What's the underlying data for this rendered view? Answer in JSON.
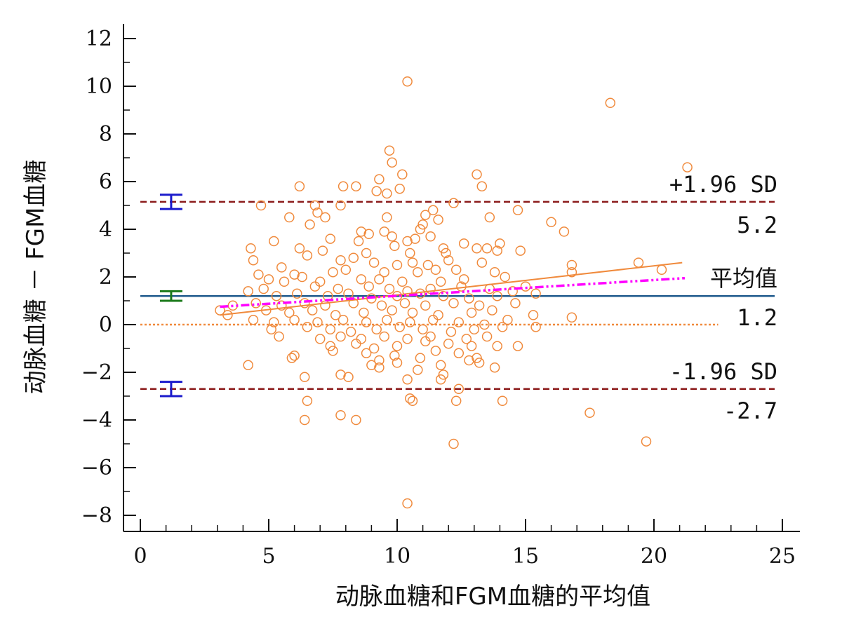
{
  "chart_data": {
    "type": "scatter",
    "title": "",
    "xlabel": "动脉血糖和FGM血糖的平均值",
    "ylabel": "动脉血糖 － FGM血糖",
    "xlim": [
      0,
      25
    ],
    "ylim": [
      -8,
      12
    ],
    "xticks": [
      0,
      5,
      10,
      15,
      20,
      25
    ],
    "yticks": [
      -8,
      -6,
      -4,
      -2,
      0,
      2,
      4,
      6,
      8,
      10,
      12
    ],
    "grid": false,
    "legend": "none",
    "colors": {
      "points": "#f08a3c",
      "mean_line": "#1f5a8c",
      "limit_lines": "#8b1a1a",
      "zero_line": "#f08a3c",
      "regression": "#f08a3c",
      "loess": "#ff00ff",
      "mean_ci": "#1a7a1a",
      "limit_ci": "#1a1acc"
    },
    "reference_lines": {
      "mean": {
        "value": 1.2,
        "name": "平均值",
        "label": "1.2"
      },
      "upper": {
        "value": 5.15,
        "name": "+1.96 SD",
        "label": "5.2"
      },
      "lower": {
        "value": -2.7,
        "name": "-1.96 SD",
        "label": "-2.7"
      },
      "zero": {
        "value": 0,
        "x_range": [
          0,
          22.5
        ]
      }
    },
    "confidence_intervals": {
      "x": 1.2,
      "mean": [
        1.0,
        1.4
      ],
      "upper": [
        4.85,
        5.45
      ],
      "lower": [
        -3.0,
        -2.4
      ]
    },
    "regression_line": {
      "x": [
        3.1,
        21.1
      ],
      "y": [
        0.4,
        2.6
      ]
    },
    "loess_line": {
      "x": [
        3.1,
        21.2
      ],
      "y": [
        0.75,
        1.95
      ]
    },
    "points": [
      [
        10.4,
        10.2
      ],
      [
        18.3,
        9.3
      ],
      [
        9.7,
        7.3
      ],
      [
        9.8,
        6.8
      ],
      [
        21.3,
        6.6
      ],
      [
        10.2,
        6.3
      ],
      [
        13.1,
        6.3
      ],
      [
        9.3,
        6.1
      ],
      [
        13.3,
        5.8
      ],
      [
        6.2,
        5.8
      ],
      [
        7.9,
        5.8
      ],
      [
        8.4,
        5.8
      ],
      [
        10.1,
        5.7
      ],
      [
        9.2,
        5.6
      ],
      [
        9.6,
        5.5
      ],
      [
        12.2,
        5.1
      ],
      [
        4.7,
        5.0
      ],
      [
        6.8,
        5.0
      ],
      [
        7.8,
        5.0
      ],
      [
        14.7,
        4.8
      ],
      [
        11.4,
        4.8
      ],
      [
        6.9,
        4.7
      ],
      [
        11.1,
        4.6
      ],
      [
        7.2,
        4.5
      ],
      [
        5.8,
        4.5
      ],
      [
        9.6,
        4.5
      ],
      [
        13.6,
        4.5
      ],
      [
        11.6,
        4.4
      ],
      [
        16.0,
        4.3
      ],
      [
        6.6,
        4.2
      ],
      [
        11.0,
        4.2
      ],
      [
        10.9,
        4.0
      ],
      [
        9.5,
        3.9
      ],
      [
        16.5,
        3.9
      ],
      [
        8.6,
        3.9
      ],
      [
        9.8,
        3.7
      ],
      [
        8.9,
        3.8
      ],
      [
        11.3,
        3.7
      ],
      [
        10.7,
        3.6
      ],
      [
        8.5,
        3.5
      ],
      [
        5.2,
        3.5
      ],
      [
        7.4,
        3.6
      ],
      [
        10.4,
        3.5
      ],
      [
        12.6,
        3.4
      ],
      [
        9.9,
        3.3
      ],
      [
        13.1,
        3.2
      ],
      [
        13.5,
        3.2
      ],
      [
        14.0,
        3.4
      ],
      [
        11.8,
        3.2
      ],
      [
        4.3,
        3.2
      ],
      [
        6.2,
        3.2
      ],
      [
        7.1,
        3.1
      ],
      [
        8.8,
        3.0
      ],
      [
        10.5,
        3.0
      ],
      [
        11.9,
        3.0
      ],
      [
        13.9,
        3.1
      ],
      [
        14.8,
        3.1
      ],
      [
        4.4,
        2.7
      ],
      [
        6.5,
        2.9
      ],
      [
        7.8,
        2.7
      ],
      [
        8.3,
        2.8
      ],
      [
        9.1,
        2.6
      ],
      [
        10.0,
        2.5
      ],
      [
        10.6,
        2.6
      ],
      [
        11.2,
        2.5
      ],
      [
        12.0,
        2.7
      ],
      [
        13.3,
        2.6
      ],
      [
        16.8,
        2.5
      ],
      [
        19.4,
        2.6
      ],
      [
        5.5,
        2.4
      ],
      [
        6.0,
        2.1
      ],
      [
        7.5,
        2.2
      ],
      [
        8.0,
        2.3
      ],
      [
        9.5,
        2.2
      ],
      [
        10.8,
        2.2
      ],
      [
        11.5,
        2.3
      ],
      [
        12.3,
        2.3
      ],
      [
        13.8,
        2.2
      ],
      [
        16.8,
        2.2
      ],
      [
        20.3,
        2.3
      ],
      [
        4.6,
        2.1
      ],
      [
        5.0,
        1.9
      ],
      [
        6.3,
        2.0
      ],
      [
        7.0,
        1.8
      ],
      [
        8.6,
        1.9
      ],
      [
        9.3,
        1.9
      ],
      [
        10.2,
        1.8
      ],
      [
        11.7,
        1.8
      ],
      [
        12.6,
        1.9
      ],
      [
        14.2,
        2.0
      ],
      [
        15.0,
        1.6
      ],
      [
        4.8,
        1.5
      ],
      [
        5.6,
        1.8
      ],
      [
        6.8,
        1.6
      ],
      [
        7.7,
        1.5
      ],
      [
        8.9,
        1.6
      ],
      [
        9.7,
        1.5
      ],
      [
        10.4,
        1.4
      ],
      [
        11.3,
        1.5
      ],
      [
        12.5,
        1.6
      ],
      [
        13.6,
        1.5
      ],
      [
        14.5,
        1.4
      ],
      [
        4.2,
        1.4
      ],
      [
        5.3,
        1.2
      ],
      [
        6.1,
        1.3
      ],
      [
        7.3,
        1.2
      ],
      [
        8.1,
        1.3
      ],
      [
        9.0,
        1.1
      ],
      [
        10.0,
        1.2
      ],
      [
        10.9,
        1.3
      ],
      [
        11.8,
        1.2
      ],
      [
        12.8,
        1.1
      ],
      [
        13.9,
        1.2
      ],
      [
        15.4,
        1.3
      ],
      [
        3.6,
        0.8
      ],
      [
        4.5,
        0.9
      ],
      [
        5.5,
        0.8
      ],
      [
        6.4,
        0.9
      ],
      [
        7.2,
        0.8
      ],
      [
        8.3,
        0.9
      ],
      [
        9.4,
        0.8
      ],
      [
        10.3,
        0.9
      ],
      [
        11.1,
        0.8
      ],
      [
        12.2,
        0.9
      ],
      [
        13.2,
        0.8
      ],
      [
        14.6,
        0.9
      ],
      [
        3.1,
        0.6
      ],
      [
        3.4,
        0.4
      ],
      [
        4.9,
        0.6
      ],
      [
        5.8,
        0.5
      ],
      [
        6.7,
        0.6
      ],
      [
        7.6,
        0.4
      ],
      [
        8.7,
        0.5
      ],
      [
        9.8,
        0.6
      ],
      [
        10.6,
        0.5
      ],
      [
        11.6,
        0.4
      ],
      [
        12.9,
        0.5
      ],
      [
        13.7,
        0.6
      ],
      [
        15.3,
        0.4
      ],
      [
        16.8,
        0.3
      ],
      [
        4.4,
        0.2
      ],
      [
        5.2,
        0.1
      ],
      [
        6.0,
        0.2
      ],
      [
        6.9,
        0.1
      ],
      [
        7.9,
        0.2
      ],
      [
        8.8,
        0.1
      ],
      [
        9.6,
        0.2
      ],
      [
        10.5,
        0.1
      ],
      [
        11.4,
        0.2
      ],
      [
        12.4,
        0.1
      ],
      [
        13.4,
        0.0
      ],
      [
        14.3,
        0.2
      ],
      [
        5.1,
        -0.2
      ],
      [
        6.5,
        -0.1
      ],
      [
        7.4,
        -0.2
      ],
      [
        8.2,
        -0.3
      ],
      [
        9.2,
        -0.2
      ],
      [
        10.1,
        -0.1
      ],
      [
        11.0,
        -0.2
      ],
      [
        12.1,
        -0.3
      ],
      [
        13.0,
        -0.2
      ],
      [
        14.1,
        -0.1
      ],
      [
        15.4,
        -0.1
      ],
      [
        5.4,
        -0.5
      ],
      [
        7.0,
        -0.6
      ],
      [
        7.8,
        -0.5
      ],
      [
        8.6,
        -0.6
      ],
      [
        9.5,
        -0.5
      ],
      [
        10.4,
        -0.6
      ],
      [
        11.3,
        -0.5
      ],
      [
        12.7,
        -0.6
      ],
      [
        13.5,
        -0.5
      ],
      [
        7.4,
        -0.9
      ],
      [
        8.4,
        -0.8
      ],
      [
        9.1,
        -1.0
      ],
      [
        10.0,
        -0.9
      ],
      [
        11.1,
        -0.7
      ],
      [
        12.0,
        -0.8
      ],
      [
        12.9,
        -0.9
      ],
      [
        13.9,
        -0.9
      ],
      [
        14.7,
        -0.9
      ],
      [
        7.5,
        -1.1
      ],
      [
        8.8,
        -1.2
      ],
      [
        9.9,
        -1.3
      ],
      [
        11.5,
        -1.1
      ],
      [
        12.4,
        -1.2
      ],
      [
        5.9,
        -1.4
      ],
      [
        6.0,
        -1.3
      ],
      [
        9.3,
        -1.5
      ],
      [
        10.9,
        -1.4
      ],
      [
        12.8,
        -1.5
      ],
      [
        13.1,
        -1.4
      ],
      [
        4.2,
        -1.7
      ],
      [
        9.0,
        -1.7
      ],
      [
        10.0,
        -1.6
      ],
      [
        11.7,
        -1.7
      ],
      [
        13.2,
        -1.6
      ],
      [
        9.3,
        -1.8
      ],
      [
        10.8,
        -1.9
      ],
      [
        13.8,
        -1.8
      ],
      [
        7.8,
        -2.1
      ],
      [
        8.1,
        -2.2
      ],
      [
        6.4,
        -2.2
      ],
      [
        11.8,
        -2.1
      ],
      [
        11.7,
        -2.3
      ],
      [
        10.4,
        -2.3
      ],
      [
        12.4,
        -2.7
      ],
      [
        10.5,
        -3.1
      ],
      [
        10.6,
        -3.2
      ],
      [
        12.3,
        -3.2
      ],
      [
        6.5,
        -3.2
      ],
      [
        14.1,
        -3.2
      ],
      [
        17.5,
        -3.7
      ],
      [
        7.8,
        -3.8
      ],
      [
        6.4,
        -4.0
      ],
      [
        8.4,
        -4.0
      ],
      [
        19.7,
        -4.9
      ],
      [
        12.2,
        -5.0
      ],
      [
        10.4,
        -7.5
      ]
    ]
  }
}
